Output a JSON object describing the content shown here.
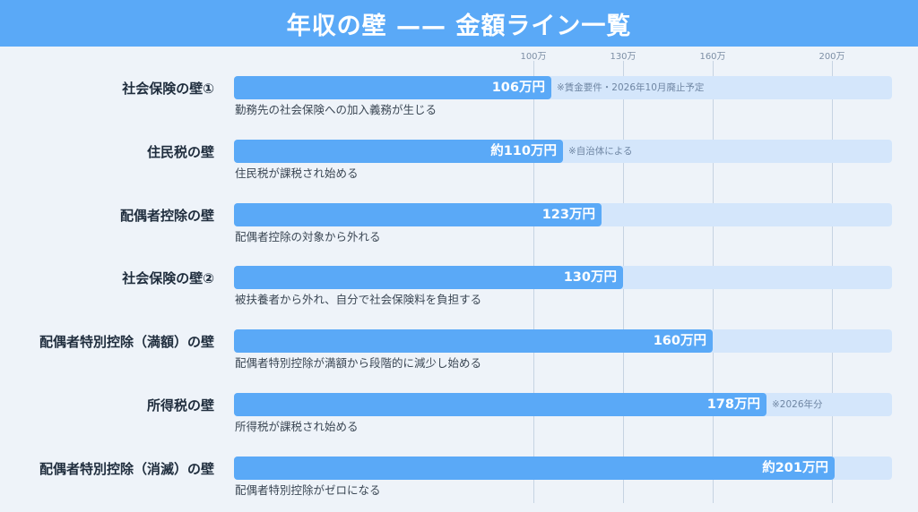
{
  "title": "年収の壁 —— 金額ライン一覧",
  "chart_data": {
    "type": "bar",
    "orientation": "horizontal",
    "title": "年収の壁 —— 金額ライン一覧",
    "unit": "万円",
    "xlim": [
      0,
      250
    ],
    "ticks": [
      {
        "value": 100,
        "label": "100万"
      },
      {
        "value": 130,
        "label": "130万"
      },
      {
        "value": 160,
        "label": "160万"
      },
      {
        "value": 200,
        "label": "200万"
      }
    ],
    "categories": [
      "社会保険の壁①",
      "住民税の壁",
      "配偶者控除の壁",
      "社会保険の壁②",
      "配偶者特別控除（満額）の壁",
      "所得税の壁",
      "配偶者特別控除（消滅）の壁"
    ],
    "values": [
      106,
      110,
      123,
      130,
      160,
      178,
      201
    ],
    "value_labels": [
      "106万円",
      "約110万円",
      "123万円",
      "130万円",
      "160万円",
      "178万円",
      "約201万円"
    ],
    "notes": [
      "※賃金要件・2026年10月廃止予定",
      "※自治体による",
      "",
      "",
      "",
      "※2026年分",
      ""
    ],
    "descriptions": [
      "勤務先の社会保険への加入義務が生じる",
      "住民税が課税され始める",
      "配偶者控除の対象から外れる",
      "被扶養者から外れ、自分で社会保険料を負担する",
      "配偶者特別控除が満額から段階的に減少し始める",
      "所得税が課税され始める",
      "配偶者特別控除がゼロになる"
    ],
    "grid": true,
    "colors": {
      "bar": "#5aa9f7",
      "track": "#d4e6fb",
      "header": "#5aa9f7"
    }
  }
}
